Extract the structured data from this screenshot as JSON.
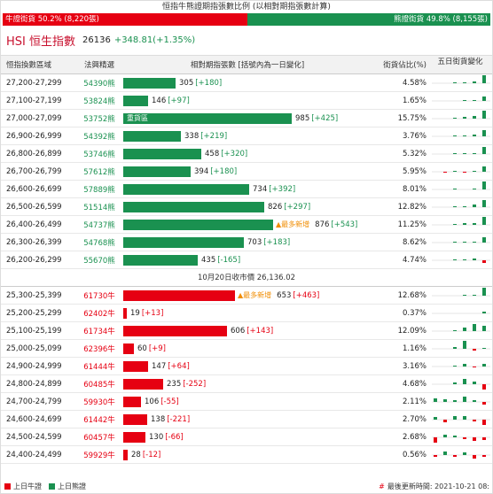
{
  "title": "恒指牛熊證期指張數比例 (以相對期指張數計算)",
  "ratio": {
    "bull_label": "牛證街貨 50.2% (8,220張)",
    "bear_label": "熊證街貨 49.8% (8,155張)",
    "bull_fraction": 0.502
  },
  "index": {
    "name": "HSI 恒生指數",
    "value": "26136",
    "change": "+348.81(+1.35%)"
  },
  "headers": {
    "range": "恒指換數區域",
    "top": "法興精選",
    "contracts": "相對期指張數 [括號內為一日變化]",
    "street_pct": "街貨佔比(%)",
    "five_day": "五日街貨變化"
  },
  "bear_rows": [
    {
      "range": "27,200-27,299",
      "code": "54390熊",
      "count": 305,
      "count_text": "305",
      "delta": "[+180]",
      "pct": "4.58%",
      "tag": "",
      "new": "",
      "spark": [
        0,
        0,
        1,
        1,
        2,
        9
      ]
    },
    {
      "range": "27,100-27,199",
      "code": "53824熊",
      "count": 146,
      "count_text": "146",
      "delta": "[+97]",
      "pct": "1.65%",
      "tag": "",
      "new": "",
      "spark": [
        0,
        0,
        0,
        1,
        1,
        5
      ]
    },
    {
      "range": "27,000-27,099",
      "code": "53752熊",
      "count": 985,
      "count_text": "985",
      "delta": "[+425]",
      "pct": "15.75%",
      "tag": "重貨區",
      "new": "",
      "spark": [
        0,
        0,
        1,
        2,
        3,
        9
      ]
    },
    {
      "range": "26,900-26,999",
      "code": "54392熊",
      "count": 338,
      "count_text": "338",
      "delta": "[+219]",
      "pct": "3.76%",
      "tag": "",
      "new": "",
      "spark": [
        0,
        0,
        1,
        1,
        2,
        7
      ]
    },
    {
      "range": "26,800-26,899",
      "code": "53746熊",
      "count": 458,
      "count_text": "458",
      "delta": "[+320]",
      "pct": "5.32%",
      "tag": "",
      "new": "",
      "spark": [
        0,
        0,
        1,
        1,
        1,
        8
      ]
    },
    {
      "range": "26,700-26,799",
      "code": "57612熊",
      "count": 394,
      "count_text": "394",
      "delta": "[+180]",
      "pct": "5.95%",
      "tag": "",
      "new": "",
      "spark": [
        0,
        -1,
        1,
        -1,
        1,
        6
      ]
    },
    {
      "range": "26,600-26,699",
      "code": "57889熊",
      "count": 734,
      "count_text": "734",
      "delta": "[+392]",
      "pct": "8.01%",
      "tag": "",
      "new": "",
      "spark": [
        0,
        0,
        1,
        0,
        1,
        9
      ]
    },
    {
      "range": "26,500-26,599",
      "code": "51514熊",
      "count": 826,
      "count_text": "826",
      "delta": "[+297]",
      "pct": "12.82%",
      "tag": "",
      "new": "",
      "spark": [
        0,
        0,
        1,
        1,
        3,
        8
      ]
    },
    {
      "range": "26,400-26,499",
      "code": "54737熊",
      "count": 876,
      "count_text": "876",
      "delta": "[+543]",
      "pct": "11.25%",
      "tag": "",
      "new": "▲最多新增",
      "spark": [
        0,
        0,
        1,
        2,
        2,
        9
      ]
    },
    {
      "range": "26,300-26,399",
      "code": "54768熊",
      "count": 703,
      "count_text": "703",
      "delta": "[+183]",
      "pct": "8.62%",
      "tag": "",
      "new": "",
      "spark": [
        0,
        0,
        1,
        1,
        1,
        6
      ]
    },
    {
      "range": "26,200-26,299",
      "code": "55670熊",
      "count": 435,
      "count_text": "435",
      "delta": "[-165]",
      "pct": "4.74%",
      "tag": "",
      "new": "",
      "spark": [
        0,
        0,
        1,
        1,
        2,
        -3
      ]
    }
  ],
  "close_line": "10月20日收市價 26,136.02",
  "bull_rows": [
    {
      "range": "25,300-25,399",
      "code": "61730牛",
      "count": 653,
      "count_text": "653",
      "delta": "[+463]",
      "pct": "12.68%",
      "tag": "",
      "new": "▲最多新增",
      "spark": [
        0,
        0,
        0,
        1,
        1,
        9
      ]
    },
    {
      "range": "25,200-25,299",
      "code": "62402牛",
      "count": 19,
      "count_text": "19",
      "delta": "[+13]",
      "pct": "0.37%",
      "tag": "",
      "new": "",
      "spark": [
        0,
        0,
        0,
        0,
        0,
        2
      ]
    },
    {
      "range": "25,100-25,199",
      "code": "61734牛",
      "count": 606,
      "count_text": "606",
      "delta": "[+143]",
      "pct": "12.09%",
      "tag": "",
      "new": "",
      "spark": [
        0,
        0,
        1,
        4,
        8,
        6
      ]
    },
    {
      "range": "25,000-25,099",
      "code": "62396牛",
      "count": 60,
      "count_text": "60",
      "delta": "[+9]",
      "pct": "1.16%",
      "tag": "",
      "new": "",
      "spark": [
        0,
        0,
        2,
        9,
        -2,
        1
      ]
    },
    {
      "range": "24,900-24,999",
      "code": "61444牛",
      "count": 147,
      "count_text": "147",
      "delta": "[+64]",
      "pct": "3.16%",
      "tag": "",
      "new": "",
      "spark": [
        0,
        0,
        1,
        3,
        -1,
        3
      ]
    },
    {
      "range": "24,800-24,899",
      "code": "60485牛",
      "count": 235,
      "count_text": "235",
      "delta": "[-252]",
      "pct": "4.68%",
      "tag": "",
      "new": "",
      "spark": [
        0,
        0,
        2,
        6,
        3,
        -6
      ]
    },
    {
      "range": "24,700-24,799",
      "code": "59930牛",
      "count": 106,
      "count_text": "106",
      "delta": "[-55]",
      "pct": "2.11%",
      "tag": "",
      "new": "",
      "spark": [
        4,
        3,
        2,
        6,
        2,
        -3
      ]
    },
    {
      "range": "24,600-24,699",
      "code": "61442牛",
      "count": 138,
      "count_text": "138",
      "delta": "[-221]",
      "pct": "2.70%",
      "tag": "",
      "new": "",
      "spark": [
        3,
        -3,
        4,
        4,
        -2,
        -6
      ]
    },
    {
      "range": "24,500-24,599",
      "code": "60457牛",
      "count": 130,
      "count_text": "130",
      "delta": "[-66]",
      "pct": "2.68%",
      "tag": "",
      "new": "",
      "spark": [
        -6,
        3,
        2,
        -2,
        -4,
        -3
      ]
    },
    {
      "range": "24,400-24,499",
      "code": "59929牛",
      "count": 28,
      "count_text": "28",
      "delta": "[-12]",
      "pct": "0.56%",
      "tag": "",
      "new": "",
      "spark": [
        -2,
        4,
        -2,
        3,
        -4,
        -2
      ]
    }
  ],
  "scale_max": 985,
  "footer": {
    "legend_bull": "上日牛證",
    "legend_bear": "上日熊證",
    "updated": "最後更新時間: 2021-10-21 08:",
    "hash": "#"
  },
  "colors": {
    "bull": "#e60012",
    "bear": "#1a9150"
  }
}
